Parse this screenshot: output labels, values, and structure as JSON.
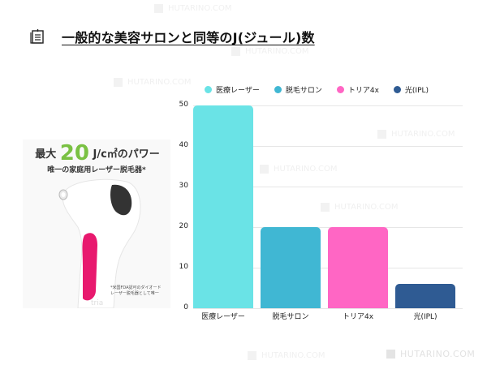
{
  "title": "一般的な美容サロンと同等のJ(ジュール)数",
  "title_icon": "notepad-icon",
  "product": {
    "headline_prefix": "最大",
    "headline_number": "20",
    "headline_suffix": "J/c㎡のパワー",
    "subheadline": "唯一の家庭用レーザー脱毛器*",
    "footnote_line1": "*米国FDA認可のダイオード",
    "footnote_line2": "レーザー脱毛器として唯一",
    "brand": "tria"
  },
  "watermark": "HUTARINO.COM",
  "colors": {
    "medical_laser": "#6ae3e6",
    "salon": "#40b7d3",
    "tria": "#ff66c4",
    "ipl": "#2f5b93"
  },
  "chart_data": {
    "type": "bar",
    "title": "一般的な美容サロンと同等のJ(ジュール)数",
    "categories": [
      "医療レーザー",
      "脱毛サロン",
      "トリア4x",
      "光(IPL)"
    ],
    "values": [
      50,
      20,
      20,
      6
    ],
    "legend": [
      "医療レーザー",
      "脱毛サロン",
      "トリア4x",
      "光(IPL)"
    ],
    "legend_position": "top",
    "xlabel": "",
    "ylabel": "",
    "ylim": [
      0,
      50
    ],
    "yticks": [
      "0",
      "10",
      "20",
      "30",
      "40",
      "50"
    ],
    "grid": true
  }
}
